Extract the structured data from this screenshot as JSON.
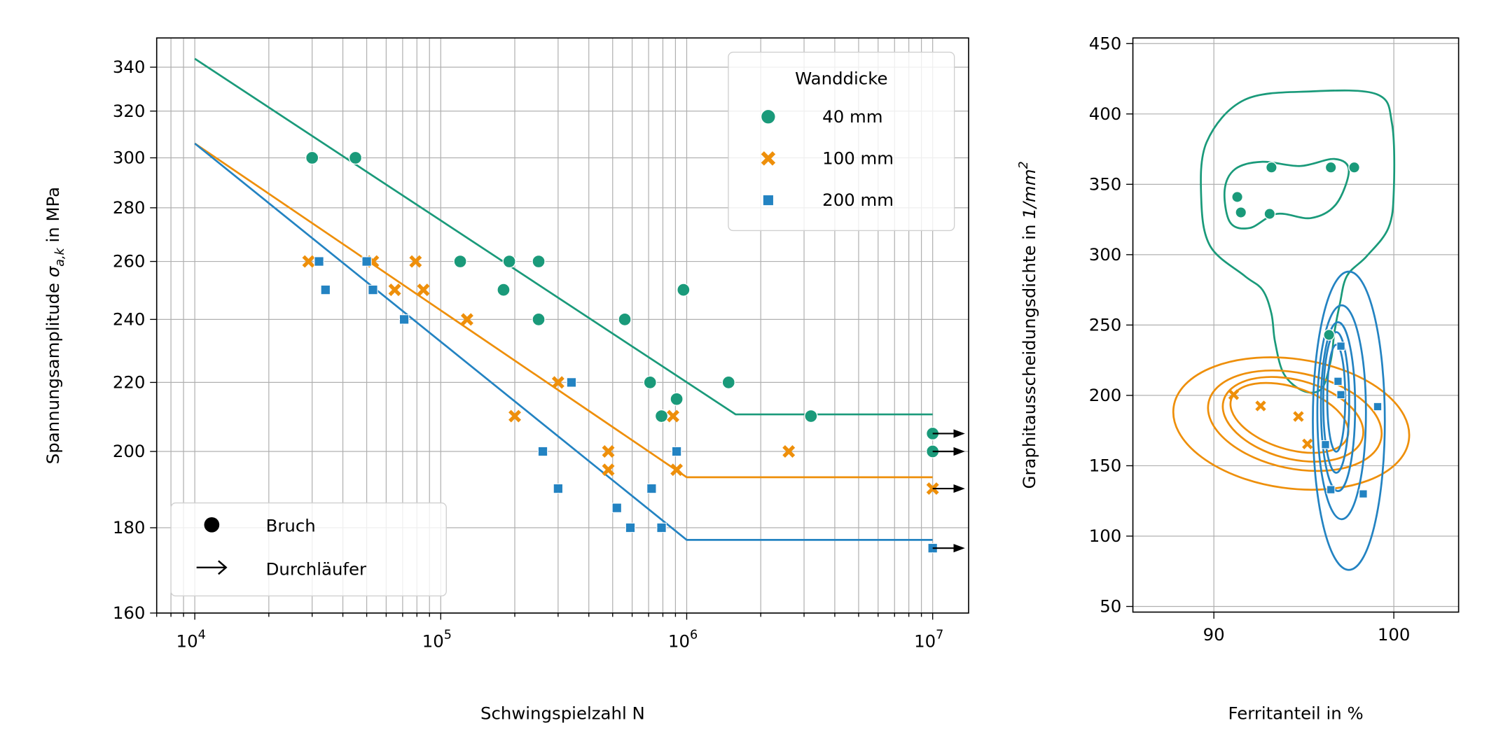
{
  "chart_data": [
    {
      "type": "scatter",
      "title": "",
      "xlabel": "Schwingspielzahl N",
      "ylabel_main": "Spannungsamplitude ",
      "ylabel_symbol": "σ",
      "ylabel_sub": "a,k",
      "ylabel_tail": " in MPa",
      "xscale": "log",
      "yscale": "log",
      "xlim": [
        7000,
        14000000
      ],
      "ylim": [
        160,
        354
      ],
      "grid": true,
      "x_ticks": [
        10000,
        100000,
        1000000,
        10000000
      ],
      "x_tick_labels": [
        {
          "base": "10",
          "exp": "4"
        },
        {
          "base": "10",
          "exp": "5"
        },
        {
          "base": "10",
          "exp": "6"
        },
        {
          "base": "10",
          "exp": "7"
        }
      ],
      "y_ticks": [
        160,
        180,
        200,
        220,
        240,
        260,
        280,
        300,
        320,
        340
      ],
      "y_tick_labels": [
        "160",
        "180",
        "200",
        "220",
        "240",
        "260",
        "280",
        "300",
        "320",
        "340"
      ],
      "legend": {
        "title": "Wanddicke",
        "placement": "top-right",
        "entries": [
          "40 mm",
          "100 mm",
          "200 mm"
        ]
      },
      "legend2": {
        "placement": "bottom-left",
        "entries": [
          {
            "marker": "circle",
            "label": "Bruch"
          },
          {
            "marker": "arrow",
            "label": "Durchläufer"
          }
        ]
      },
      "series": [
        {
          "name": "40 mm",
          "color": "#1a9a7a",
          "marker": "circle",
          "points": [
            [
              30000,
              300
            ],
            [
              45000,
              300
            ],
            [
              120000,
              260
            ],
            [
              190000,
              260
            ],
            [
              180000,
              250
            ],
            [
              250000,
              260
            ],
            [
              250000,
              240
            ],
            [
              560000,
              240
            ],
            [
              710000,
              220
            ],
            [
              790000,
              210
            ],
            [
              910000,
              215
            ],
            [
              970000,
              250
            ],
            [
              1480000,
              220
            ],
            [
              3200000,
              210
            ],
            [
              10000000,
              205
            ],
            [
              10000000,
              200
            ]
          ],
          "fit": [
            [
              10000,
              344
            ],
            [
              1580000,
              210.5
            ],
            [
              10000000,
              210.5
            ]
          ]
        },
        {
          "name": "100 mm",
          "color": "#ee8f0a",
          "marker": "x",
          "points": [
            [
              29000,
              260
            ],
            [
              53000,
              260
            ],
            [
              65000,
              250
            ],
            [
              79000,
              260
            ],
            [
              85000,
              250
            ],
            [
              128000,
              240
            ],
            [
              200000,
              210
            ],
            [
              300000,
              220
            ],
            [
              480000,
              200
            ],
            [
              480000,
              195
            ],
            [
              880000,
              210
            ],
            [
              910000,
              195
            ],
            [
              2600000,
              200
            ],
            [
              10000000,
              190
            ]
          ],
          "fit": [
            [
              10000,
              306
            ],
            [
              1000000,
              193
            ],
            [
              10000000,
              193
            ]
          ]
        },
        {
          "name": "200 mm",
          "color": "#2383c2",
          "marker": "square",
          "points": [
            [
              32000,
              260
            ],
            [
              34000,
              250
            ],
            [
              50000,
              260
            ],
            [
              53000,
              250
            ],
            [
              71000,
              240
            ],
            [
              340000,
              220
            ],
            [
              260000,
              200
            ],
            [
              300000,
              190
            ],
            [
              520000,
              185
            ],
            [
              590000,
              180
            ],
            [
              720000,
              190
            ],
            [
              790000,
              180
            ],
            [
              910000,
              200
            ],
            [
              10000000,
              175
            ]
          ],
          "fit": [
            [
              10000,
              306
            ],
            [
              1000000,
              177
            ],
            [
              10000000,
              177
            ]
          ]
        }
      ],
      "runouts": [
        [
          10000000,
          205,
          "#1a9a7a"
        ],
        [
          10000000,
          200,
          "#1a9a7a"
        ],
        [
          10000000,
          190,
          "#ee8f0a"
        ],
        [
          10000000,
          175,
          "#2383c2"
        ]
      ]
    },
    {
      "type": "scatter",
      "title": "",
      "xlabel": "Ferritanteil in %",
      "ylabel_main": "Graphitausscheidungsdichte in ",
      "ylabel_unit": "1/mm",
      "ylabel_exp": "2",
      "xlim": [
        85.5,
        103.6
      ],
      "ylim": [
        46,
        454
      ],
      "grid": true,
      "x_ticks": [
        90,
        100
      ],
      "x_tick_labels": [
        "90",
        "100"
      ],
      "y_ticks": [
        50,
        100,
        150,
        200,
        250,
        300,
        350,
        400,
        450
      ],
      "y_tick_labels": [
        "50",
        "100",
        "150",
        "200",
        "250",
        "300",
        "350",
        "400",
        "450"
      ],
      "series": [
        {
          "name": "40 mm",
          "color": "#1a9a7a",
          "marker": "circle",
          "points": [
            [
              91.3,
              341
            ],
            [
              91.5,
              330
            ],
            [
              93.2,
              362
            ],
            [
              93.1,
              329
            ],
            [
              96.5,
              362
            ],
            [
              97.8,
              362
            ],
            [
              96.4,
              243
            ]
          ],
          "contours": [
            {
              "type": "poly",
              "pts": [
                [
                  97.4,
                  285
                ],
                [
                  98.5,
                  299
                ],
                [
                  99.7,
                  319
                ],
                [
                  100,
                  346
                ],
                [
                  99.9,
                  393
                ],
                [
                  99.05,
                  414
                ],
                [
                  95.4,
                  416
                ],
                [
                  91.7,
                  410
                ],
                [
                  89.6,
                  380
                ],
                [
                  89.3,
                  339
                ],
                [
                  89.8,
                  306
                ],
                [
                  91.7,
                  285
                ],
                [
                  92.7,
                  275
                ],
                [
                  93.2,
                  258
                ],
                [
                  93.4,
                  238
                ],
                [
                  93.9,
                  215
                ],
                [
                  95,
                  203
                ],
                [
                  96,
                  205
                ],
                [
                  96.5,
                  225
                ],
                [
                  96.7,
                  245
                ],
                [
                  97,
                  265
                ]
              ]
            },
            {
              "type": "poly",
              "pts": [
                [
                  90.6,
                  346
                ],
                [
                  90.9,
                  323
                ],
                [
                  92,
                  319
                ],
                [
                  93.5,
                  329
                ],
                [
                  95.4,
                  326
                ],
                [
                  96.8,
                  336
                ],
                [
                  97.5,
                  360
                ],
                [
                  96.7,
                  368
                ],
                [
                  94.8,
                  363
                ],
                [
                  92.7,
                  366
                ],
                [
                  91.2,
                  361
                ]
              ]
            }
          ]
        },
        {
          "name": "100 mm",
          "color": "#ee8f0a",
          "marker": "x",
          "points": [
            [
              91.1,
              200.5
            ],
            [
              92.6,
              192.5
            ],
            [
              94.7,
              185
            ],
            [
              95.2,
              165.5
            ]
          ],
          "contours": [
            {
              "type": "ellipse",
              "c": [
                94.3,
                180
              ],
              "r": [
                6.6,
                46
              ],
              "rot": 8
            },
            {
              "type": "ellipse",
              "c": [
                94.5,
                182
              ],
              "r": [
                4.9,
                34
              ],
              "rot": 12
            },
            {
              "type": "ellipse",
              "c": [
                94.4,
                183
              ],
              "r": [
                4.0,
                28
              ],
              "rot": 15
            },
            {
              "type": "ellipse",
              "c": [
                94.2,
                184
              ],
              "r": [
                3.4,
                22
              ],
              "rot": 18
            }
          ]
        },
        {
          "name": "200 mm",
          "color": "#2383c2",
          "marker": "square",
          "points": [
            [
              97.06,
              235
            ],
            [
              96.9,
              210
            ],
            [
              97.06,
              200.5
            ],
            [
              99.1,
              192
            ],
            [
              96.2,
              165
            ],
            [
              96.5,
              133
            ],
            [
              98.3,
              130
            ]
          ],
          "contours": [
            {
              "type": "ellipse",
              "c": [
                97.5,
                182
              ],
              "r": [
                2.0,
                106
              ],
              "rot": 0
            },
            {
              "type": "ellipse",
              "c": [
                97.1,
                188
              ],
              "r": [
                1.35,
                76
              ],
              "rot": 0
            },
            {
              "type": "ellipse",
              "c": [
                96.9,
                192
              ],
              "r": [
                0.95,
                60
              ],
              "rot": 0
            },
            {
              "type": "ellipse",
              "c": [
                96.8,
                195
              ],
              "r": [
                0.72,
                50
              ],
              "rot": 0
            },
            {
              "type": "ellipse",
              "c": [
                96.8,
                198
              ],
              "r": [
                0.5,
                38
              ],
              "rot": 0
            }
          ]
        }
      ]
    }
  ]
}
